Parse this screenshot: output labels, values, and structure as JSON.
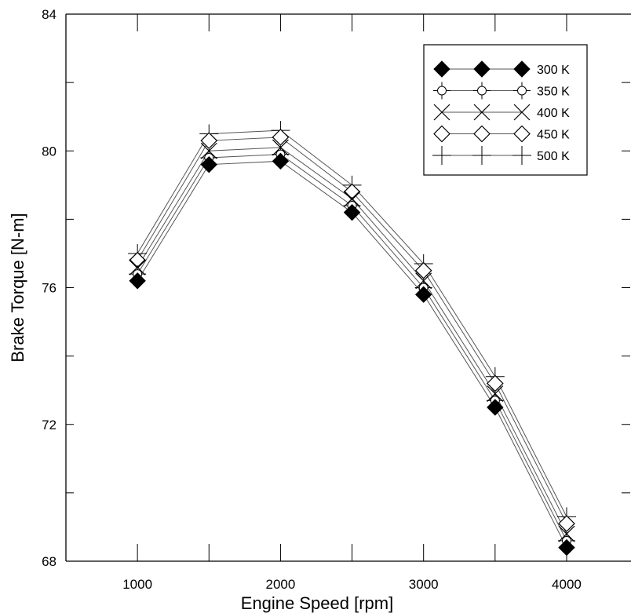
{
  "chart_data": {
    "type": "line",
    "title": "",
    "xlabel": "Engine Speed [rpm]",
    "ylabel": "Brake Torque [N-m]",
    "xlim": [
      500,
      4450
    ],
    "ylim": [
      68,
      84
    ],
    "x_ticks": [
      1000,
      2000,
      3000,
      4000
    ],
    "y_ticks": [
      68,
      72,
      76,
      80,
      84
    ],
    "grid": false,
    "legend_position": "top-right",
    "x": [
      1000,
      1500,
      2000,
      2500,
      3000,
      3500,
      4000
    ],
    "series": [
      {
        "name": "300 K",
        "marker": "filled-diamond",
        "values": [
          76.2,
          79.6,
          79.7,
          78.2,
          75.8,
          72.5,
          68.4
        ]
      },
      {
        "name": "350 K",
        "marker": "circle-plus",
        "values": [
          76.4,
          79.8,
          79.9,
          78.4,
          76.0,
          72.7,
          68.6
        ]
      },
      {
        "name": "400 K",
        "marker": "x",
        "values": [
          76.6,
          80.0,
          80.1,
          78.6,
          76.2,
          72.9,
          68.8
        ]
      },
      {
        "name": "450 K",
        "marker": "open-diamond",
        "values": [
          76.8,
          80.3,
          80.4,
          78.8,
          76.5,
          73.2,
          69.1
        ]
      },
      {
        "name": "500 K",
        "marker": "plus",
        "values": [
          77.0,
          80.5,
          80.6,
          79.0,
          76.7,
          73.4,
          69.3
        ]
      }
    ]
  }
}
